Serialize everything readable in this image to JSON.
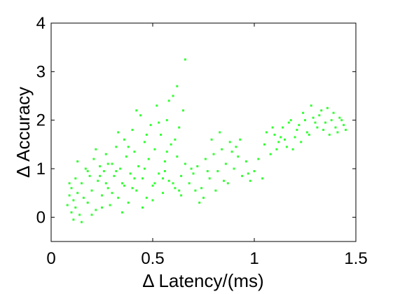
{
  "chart_data": {
    "type": "scatter",
    "xlabel": "Δ Latency/(ms)",
    "ylabel": "Δ Accuracy",
    "xlim": [
      0,
      1.5
    ],
    "ylim": [
      -0.5,
      4
    ],
    "x_ticks": [
      "0",
      "0.5",
      "1",
      "1.5"
    ],
    "y_ticks": [
      "0",
      "1",
      "2",
      "3",
      "4"
    ],
    "x_tick_values": [
      0,
      0.5,
      1,
      1.5
    ],
    "y_tick_values": [
      0,
      1,
      2,
      3,
      4
    ],
    "grid": false,
    "marker_color": "#33ff33",
    "series": [
      {
        "points": [
          [
            0.08,
            0.25
          ],
          [
            0.09,
            0.45
          ],
          [
            0.1,
            0.1
          ],
          [
            0.1,
            0.6
          ],
          [
            0.11,
            0.35
          ],
          [
            0.12,
            0.8
          ],
          [
            0.12,
            0.2
          ],
          [
            0.13,
            0.5
          ],
          [
            0.14,
            0.05
          ],
          [
            0.15,
            0.7
          ],
          [
            0.16,
            0.4
          ],
          [
            0.17,
            1.0
          ],
          [
            0.18,
            0.3
          ],
          [
            0.19,
            0.85
          ],
          [
            0.2,
            0.55
          ],
          [
            0.21,
            1.2
          ],
          [
            0.22,
            0.15
          ],
          [
            0.23,
            0.75
          ],
          [
            0.24,
            1.05
          ],
          [
            0.25,
            0.45
          ],
          [
            0.26,
            0.95
          ],
          [
            0.27,
            1.3
          ],
          [
            0.28,
            0.6
          ],
          [
            0.29,
            0.25
          ],
          [
            0.3,
            1.1
          ],
          [
            0.31,
            0.85
          ],
          [
            0.32,
            1.45
          ],
          [
            0.33,
            0.4
          ],
          [
            0.34,
            1.0
          ],
          [
            0.35,
            0.7
          ],
          [
            0.36,
            1.6
          ],
          [
            0.37,
            1.25
          ],
          [
            0.38,
            0.3
          ],
          [
            0.39,
            0.9
          ],
          [
            0.4,
            1.8
          ],
          [
            0.41,
            1.35
          ],
          [
            0.42,
            0.55
          ],
          [
            0.43,
            1.05
          ],
          [
            0.44,
            2.1
          ],
          [
            0.45,
            0.8
          ],
          [
            0.46,
            1.55
          ],
          [
            0.47,
            0.4
          ],
          [
            0.48,
            1.2
          ],
          [
            0.49,
            1.9
          ],
          [
            0.5,
            0.65
          ],
          [
            0.51,
            1.4
          ],
          [
            0.52,
            2.3
          ],
          [
            0.53,
            0.9
          ],
          [
            0.54,
            1.7
          ],
          [
            0.55,
            0.5
          ],
          [
            0.56,
            1.15
          ],
          [
            0.57,
            2.0
          ],
          [
            0.58,
            0.75
          ],
          [
            0.59,
            1.5
          ],
          [
            0.6,
            2.5
          ],
          [
            0.61,
            0.6
          ],
          [
            0.62,
            1.25
          ],
          [
            0.63,
            1.85
          ],
          [
            0.64,
            0.85
          ],
          [
            0.65,
            2.2
          ],
          [
            0.66,
            3.25
          ],
          [
            0.62,
            2.7
          ],
          [
            0.58,
            2.4
          ],
          [
            0.64,
            0.45
          ],
          [
            0.55,
            0.8
          ],
          [
            0.5,
            0.35
          ],
          [
            0.45,
            0.2
          ],
          [
            0.4,
            0.6
          ],
          [
            0.35,
            0.1
          ],
          [
            0.3,
            0.5
          ],
          [
            0.25,
            0.2
          ],
          [
            0.2,
            0.05
          ],
          [
            0.15,
            -0.1
          ],
          [
            0.11,
            -0.05
          ],
          [
            0.09,
            0.7
          ],
          [
            0.13,
            1.15
          ],
          [
            0.18,
            0.95
          ],
          [
            0.22,
            1.4
          ],
          [
            0.27,
            0.7
          ],
          [
            0.33,
            1.75
          ],
          [
            0.38,
            1.45
          ],
          [
            0.42,
            2.2
          ],
          [
            0.47,
            1.7
          ],
          [
            0.53,
            1.95
          ],
          [
            0.57,
            1.35
          ],
          [
            0.61,
            1.6
          ],
          [
            0.66,
            1.1
          ],
          [
            0.68,
            0.7
          ],
          [
            0.7,
            0.9
          ],
          [
            0.72,
            1.05
          ],
          [
            0.74,
            0.6
          ],
          [
            0.76,
            1.2
          ],
          [
            0.78,
            0.8
          ],
          [
            0.8,
            1.3
          ],
          [
            0.82,
            0.95
          ],
          [
            0.84,
            1.4
          ],
          [
            0.86,
            1.1
          ],
          [
            0.88,
            1.55
          ],
          [
            0.9,
            1.0
          ],
          [
            0.92,
            1.25
          ],
          [
            0.94,
            0.85
          ],
          [
            0.96,
            1.15
          ],
          [
            0.98,
            0.75
          ],
          [
            1.0,
            0.95
          ],
          [
            1.02,
            1.2
          ],
          [
            1.04,
            0.8
          ],
          [
            0.79,
            1.6
          ],
          [
            0.83,
            1.75
          ],
          [
            0.87,
            0.7
          ],
          [
            0.91,
            1.45
          ],
          [
            0.75,
            0.4
          ],
          [
            0.71,
            0.55
          ],
          [
            0.69,
            1.0
          ],
          [
            0.73,
            0.3
          ],
          [
            0.77,
            0.95
          ],
          [
            0.81,
            0.55
          ],
          [
            0.85,
            0.75
          ],
          [
            0.89,
            1.35
          ],
          [
            0.93,
            1.6
          ],
          [
            0.97,
            0.9
          ],
          [
            1.05,
            1.5
          ],
          [
            1.08,
            1.3
          ],
          [
            1.1,
            1.7
          ],
          [
            1.12,
            1.55
          ],
          [
            1.14,
            1.85
          ],
          [
            1.16,
            1.45
          ],
          [
            1.18,
            2.0
          ],
          [
            1.2,
            1.65
          ],
          [
            1.22,
            1.9
          ],
          [
            1.24,
            2.15
          ],
          [
            1.26,
            1.75
          ],
          [
            1.28,
            2.3
          ],
          [
            1.3,
            1.95
          ],
          [
            1.32,
            2.1
          ],
          [
            1.34,
            1.8
          ],
          [
            1.36,
            2.25
          ],
          [
            1.38,
            2.0
          ],
          [
            1.4,
            1.85
          ],
          [
            1.42,
            2.05
          ],
          [
            1.44,
            1.9
          ],
          [
            1.15,
            1.6
          ],
          [
            1.17,
            1.95
          ],
          [
            1.19,
            1.4
          ],
          [
            1.21,
            1.8
          ],
          [
            1.23,
            1.55
          ],
          [
            1.25,
            2.0
          ],
          [
            1.27,
            1.7
          ],
          [
            1.29,
            2.05
          ],
          [
            1.31,
            1.85
          ],
          [
            1.33,
            2.2
          ],
          [
            1.06,
            1.75
          ],
          [
            1.09,
            1.85
          ],
          [
            1.11,
            1.4
          ],
          [
            1.13,
            1.65
          ],
          [
            1.35,
            1.95
          ],
          [
            1.37,
            1.7
          ],
          [
            1.39,
            2.15
          ],
          [
            1.41,
            1.75
          ],
          [
            1.43,
            2.0
          ],
          [
            1.45,
            1.8
          ],
          [
            0.24,
            0.85
          ],
          [
            0.28,
            1.1
          ],
          [
            0.32,
            0.95
          ],
          [
            0.36,
            0.65
          ],
          [
            0.41,
            0.8
          ],
          [
            0.46,
            1.0
          ],
          [
            0.51,
            0.7
          ],
          [
            0.56,
            0.95
          ],
          [
            0.6,
            0.7
          ],
          [
            0.63,
            0.55
          ]
        ]
      }
    ]
  }
}
